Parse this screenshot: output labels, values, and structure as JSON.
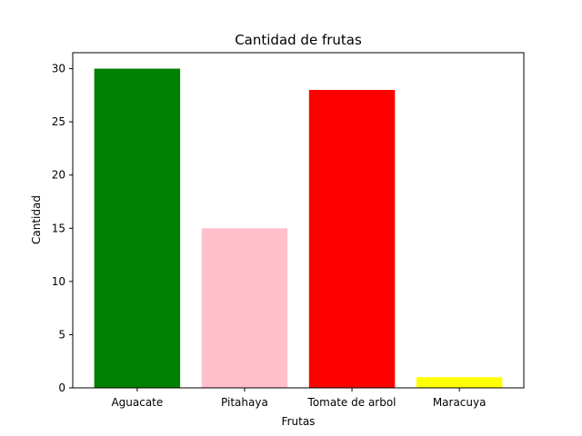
{
  "chart_data": {
    "type": "bar",
    "title": "Cantidad de frutas",
    "xlabel": "Frutas",
    "ylabel": "Cantidad",
    "categories": [
      "Aguacate",
      "Pitahaya",
      "Tomate de arbol",
      "Maracuya"
    ],
    "values": [
      30,
      15,
      28,
      1
    ],
    "colors": [
      "#008000",
      "#ffc0cb",
      "#ff0000",
      "#ffff00"
    ],
    "ylim": [
      0,
      31.5
    ],
    "yticks": [
      0,
      5,
      10,
      15,
      20,
      25,
      30
    ],
    "grid": false,
    "legend": "none"
  }
}
